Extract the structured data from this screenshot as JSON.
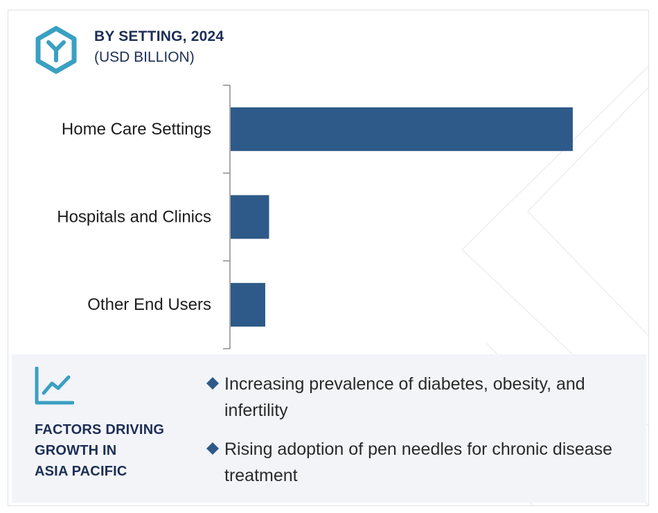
{
  "header": {
    "title": "BY SETTING, 2024",
    "subtitle": "(USD BILLION)"
  },
  "colors": {
    "bar": "#2d5a88",
    "heading": "#1d2e55",
    "accent": "#3aa0c2",
    "panel_bg": "#f2f4f8"
  },
  "icons": {
    "logo": "hexagon-y-logo",
    "growth": "trend-chart-icon",
    "bullet": "diamond-bullet-icon"
  },
  "chart_data": {
    "type": "bar",
    "orientation": "horizontal",
    "categories": [
      "Home Care Settings",
      "Hospitals and Clinics",
      "Other End Users"
    ],
    "values": [
      8.9,
      1.0,
      0.9
    ],
    "xlim": [
      0,
      10
    ],
    "grid": false,
    "legend": "none",
    "value_axis_labels": "none"
  },
  "factors": {
    "heading_lines": [
      "FACTORS DRIVING",
      "GROWTH IN",
      "ASIA PACIFIC"
    ],
    "items": [
      "Increasing prevalence of diabetes, obesity, and infertility",
      "Rising adoption of pen needles for chronic disease treatment"
    ]
  }
}
